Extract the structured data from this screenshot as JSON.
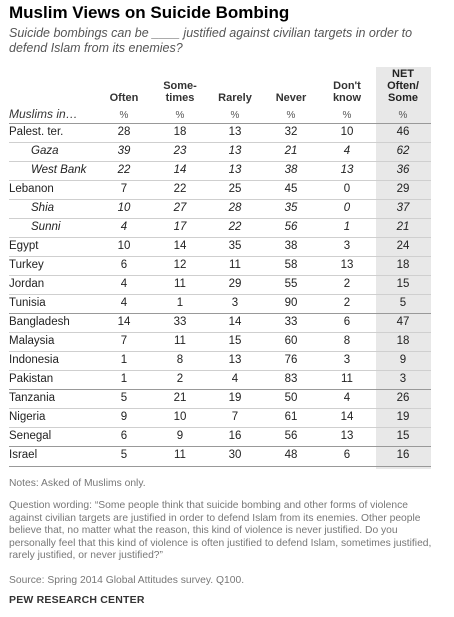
{
  "title": "Muslim Views on Suicide Bombing",
  "subtitle": "Suicide bombings can be ____ justified against civilian targets in order to defend Islam from its enemies?",
  "columns": [
    "Often",
    "Some-\ntimes",
    "Rarely",
    "Never",
    "Don't\nknow",
    "NET\nOften/\nSome"
  ],
  "percent_symbol": "%",
  "row_header": "Muslims in…",
  "chart_data": {
    "type": "table",
    "title": "Muslim Views on Suicide Bombing",
    "columns": [
      "Often",
      "Sometimes",
      "Rarely",
      "Never",
      "Don't know",
      "NET Often/Some"
    ],
    "unit": "%",
    "rows": [
      {
        "label": "Palest. ter.",
        "values": [
          28,
          18,
          13,
          32,
          10,
          46
        ],
        "sub": false
      },
      {
        "label": "Gaza",
        "values": [
          39,
          23,
          13,
          21,
          4,
          62
        ],
        "sub": true
      },
      {
        "label": "West Bank",
        "values": [
          22,
          14,
          13,
          38,
          13,
          36
        ],
        "sub": true
      },
      {
        "label": "Lebanon",
        "values": [
          7,
          22,
          25,
          45,
          0,
          29
        ],
        "sub": false
      },
      {
        "label": "Shia",
        "values": [
          10,
          27,
          28,
          35,
          0,
          37
        ],
        "sub": true
      },
      {
        "label": "Sunni",
        "values": [
          4,
          17,
          22,
          56,
          1,
          21
        ],
        "sub": true
      },
      {
        "label": "Egypt",
        "values": [
          10,
          14,
          35,
          38,
          3,
          24
        ],
        "sub": false
      },
      {
        "label": "Turkey",
        "values": [
          6,
          12,
          11,
          58,
          13,
          18
        ],
        "sub": false
      },
      {
        "label": "Jordan",
        "values": [
          4,
          11,
          29,
          55,
          2,
          15
        ],
        "sub": false
      },
      {
        "label": "Tunisia",
        "values": [
          4,
          1,
          3,
          90,
          2,
          5
        ],
        "sub": false
      },
      {
        "label": "Bangladesh",
        "values": [
          14,
          33,
          14,
          33,
          6,
          47
        ],
        "sub": false
      },
      {
        "label": "Malaysia",
        "values": [
          7,
          11,
          15,
          60,
          8,
          18
        ],
        "sub": false
      },
      {
        "label": "Indonesia",
        "values": [
          1,
          8,
          13,
          76,
          3,
          9
        ],
        "sub": false
      },
      {
        "label": "Pakistan",
        "values": [
          1,
          2,
          4,
          83,
          11,
          3
        ],
        "sub": false
      },
      {
        "label": "Tanzania",
        "values": [
          5,
          21,
          19,
          50,
          4,
          26
        ],
        "sub": false
      },
      {
        "label": "Nigeria",
        "values": [
          9,
          10,
          7,
          61,
          14,
          19
        ],
        "sub": false
      },
      {
        "label": "Senegal",
        "values": [
          6,
          9,
          16,
          56,
          13,
          15
        ],
        "sub": false
      },
      {
        "label": "Israel",
        "values": [
          5,
          11,
          30,
          48,
          6,
          16
        ],
        "sub": false
      }
    ],
    "group_breaks_after": [
      "Tunisia",
      "Pakistan",
      "Senegal"
    ]
  },
  "notes": "Notes: Asked of Muslims only.",
  "question_wording": "Question wording: “Some people think that suicide bombing and other forms of violence against civilian targets are justified in order to defend Islam from its enemies. Other people believe that, no matter what the reason, this kind of violence is never justified. Do you personally feel that this kind of violence is often justified to defend Islam, sometimes justified, rarely justified, or never justified?”",
  "source": "Source: Spring 2014 Global Attitudes survey. Q100.",
  "brand": "PEW RESEARCH CENTER"
}
